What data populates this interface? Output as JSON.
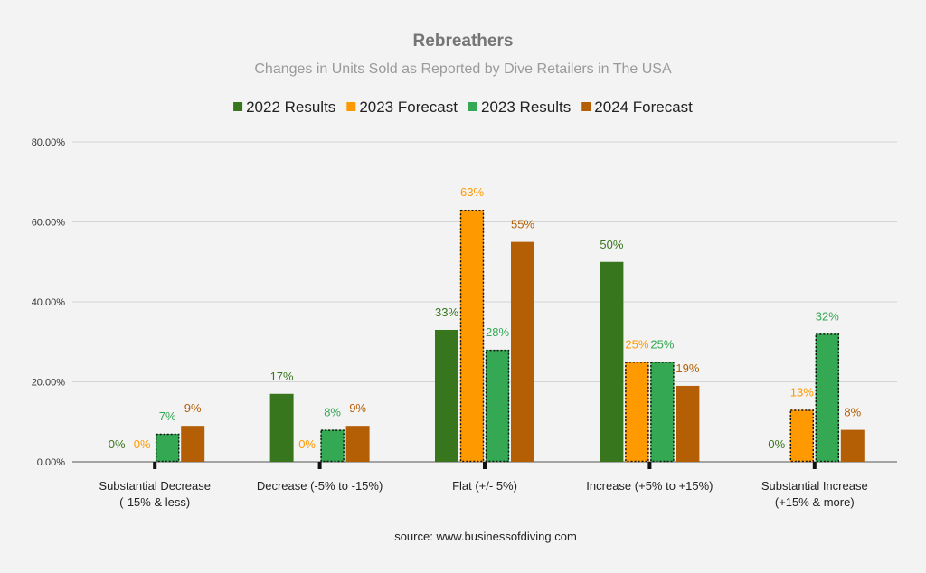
{
  "chart_data": {
    "type": "bar",
    "title": "Rebreathers",
    "subtitle": "Changes in Units Sold as Reported by Dive Retailers in The USA",
    "categories": [
      [
        "Substantial Decrease",
        "(-15% & less)"
      ],
      [
        "Decrease (-5% to -15%)"
      ],
      [
        "Flat (+/- 5%)"
      ],
      [
        "Increase (+5% to +15%)"
      ],
      [
        "Substantial Increase",
        "(+15% & more)"
      ]
    ],
    "series": [
      {
        "name": "2022 Results",
        "color": "#38761d",
        "values": [
          0,
          17,
          33,
          50,
          0
        ],
        "labels": [
          "0%",
          "17%",
          "33%",
          "50%",
          "0%"
        ],
        "forecast": false
      },
      {
        "name": "2023 Forecast",
        "color": "#ff9900",
        "values": [
          0,
          0,
          63,
          25,
          13
        ],
        "labels": [
          "0%",
          "0%",
          "63%",
          "25%",
          "13%"
        ],
        "forecast": true
      },
      {
        "name": "2023 Results",
        "color": "#34a853",
        "values": [
          7,
          8,
          28,
          25,
          32
        ],
        "labels": [
          "7%",
          "8%",
          "28%",
          "25%",
          "32%"
        ],
        "forecast": true
      },
      {
        "name": "2024 Forecast",
        "color": "#b45f06",
        "values": [
          9,
          9,
          55,
          19,
          8
        ],
        "labels": [
          "9%",
          "9%",
          "55%",
          "19%",
          "8%"
        ],
        "forecast": false
      }
    ],
    "yticks": [
      0,
      20,
      40,
      60,
      80
    ],
    "ytick_labels": [
      "0.00%",
      "20.00%",
      "40.00%",
      "60.00%",
      "80.00%"
    ],
    "ylim": [
      0,
      80
    ],
    "xlabel": "",
    "ylabel": "",
    "legend_position": "top",
    "grid": true,
    "source_note": "source: www.businessofdiving.com"
  }
}
